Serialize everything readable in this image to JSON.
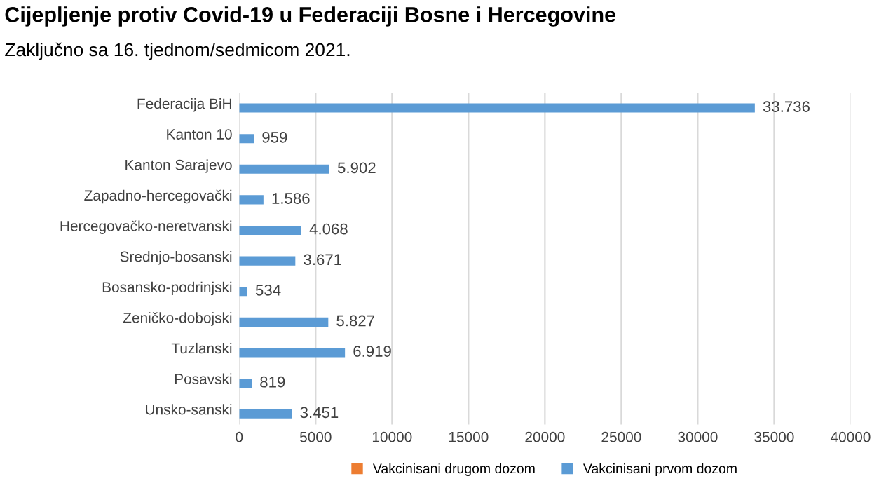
{
  "chart_data": {
    "type": "bar",
    "orientation": "horizontal",
    "title": "Cijepljenje protiv Covid-19 u Federaciji Bosne i Hercegovine",
    "subtitle": "Zaključno sa 16. tjednom/sedmicom 2021.",
    "categories": [
      "Federacija BiH",
      "Kanton 10",
      "Kanton Sarajevo",
      "Zapadno-hercegovački",
      "Hercegovačko-neretvanski",
      "Srednjo-bosanski",
      "Bosansko-podrinjski",
      "Zeničko-dobojski",
      "Tuzlanski",
      "Posavski",
      "Unsko-sanski"
    ],
    "series": [
      {
        "name": "Vakcinisani drugom dozom",
        "color": "#ed7d31",
        "values": [
          null,
          null,
          null,
          null,
          null,
          null,
          null,
          null,
          null,
          null,
          null
        ]
      },
      {
        "name": "Vakcinisani prvom dozom",
        "color": "#5b9bd5",
        "values": [
          33736,
          959,
          5902,
          1586,
          4068,
          3671,
          534,
          5827,
          6919,
          819,
          3451
        ],
        "value_labels": [
          "33.736",
          "959",
          "5.902",
          "1.586",
          "4.068",
          "3.671",
          "534",
          "5.827",
          "6.919",
          "819",
          "3.451"
        ]
      }
    ],
    "xlim": [
      0,
      40000
    ],
    "xticks": [
      0,
      5000,
      10000,
      15000,
      20000,
      25000,
      30000,
      35000,
      40000
    ],
    "grid": "x",
    "legend": "bottom"
  }
}
